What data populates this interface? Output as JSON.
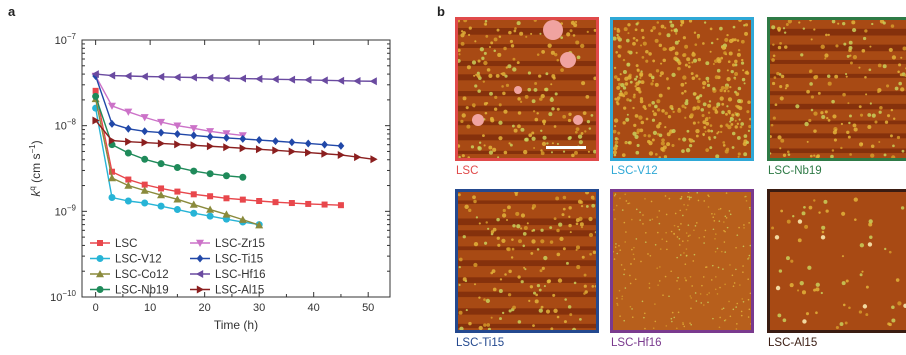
{
  "panel_a_letter": "a",
  "panel_b_letter": "b",
  "chart_data": {
    "type": "line",
    "xlabel": "Time (h)",
    "ylabel_main": "k",
    "ylabel_sup": "q",
    "ylabel_unit_pre": " (cm s",
    "ylabel_unit_sup": "−1",
    "ylabel_unit_post": ")",
    "x_ticks": [
      0,
      10,
      20,
      30,
      40,
      50
    ],
    "xlim": [
      -2.5,
      54
    ],
    "ylim": [
      1e-10,
      1e-07
    ],
    "y_scale": "log",
    "y_tick_labels": [
      {
        "value": 1e-10,
        "mant": "10",
        "exp": "−10"
      },
      {
        "value": 1e-09,
        "mant": "10",
        "exp": "−9"
      },
      {
        "value": 1e-08,
        "mant": "10",
        "exp": "−8"
      },
      {
        "value": 1e-07,
        "mant": "10",
        "exp": "−7"
      }
    ],
    "legend_position": "bottom-left",
    "series": [
      {
        "name": "LSC",
        "color": "#e8474c",
        "marker": "square",
        "x": [
          0,
          3,
          6,
          9,
          12,
          15,
          18,
          21,
          24,
          27,
          30,
          33,
          36,
          39,
          42,
          45
        ],
        "y": [
          2.55e-08,
          2.9e-09,
          2.35e-09,
          2.05e-09,
          1.85e-09,
          1.7e-09,
          1.58e-09,
          1.5e-09,
          1.42e-09,
          1.37e-09,
          1.32e-09,
          1.28e-09,
          1.25e-09,
          1.22e-09,
          1.2e-09,
          1.18e-09
        ]
      },
      {
        "name": "LSC-V12",
        "color": "#27b4d6",
        "marker": "circle",
        "x": [
          0,
          3,
          6,
          9,
          12,
          15,
          18,
          21,
          24,
          27,
          30
        ],
        "y": [
          1.6e-08,
          1.45e-09,
          1.32e-09,
          1.25e-09,
          1.15e-09,
          1.05e-09,
          9.5e-10,
          8.8e-10,
          8.1e-10,
          7.5e-10,
          7e-10
        ]
      },
      {
        "name": "LSC-Co12",
        "color": "#8a8a3c",
        "marker": "triangle-up",
        "x": [
          0,
          3,
          6,
          9,
          12,
          15,
          18,
          21,
          24,
          27,
          30
        ],
        "y": [
          2.05e-08,
          2.45e-09,
          2e-09,
          1.75e-09,
          1.55e-09,
          1.38e-09,
          1.2e-09,
          1.05e-09,
          9.2e-10,
          8e-10,
          6.9e-10
        ]
      },
      {
        "name": "LSC-Nb19",
        "color": "#1f8a5a",
        "marker": "circle",
        "x": [
          0,
          3,
          6,
          9,
          12,
          15,
          18,
          21,
          24,
          27
        ],
        "y": [
          2.2e-08,
          6e-09,
          4.8e-09,
          4.05e-09,
          3.6e-09,
          3.25e-09,
          2.95e-09,
          2.75e-09,
          2.6e-09,
          2.5e-09
        ]
      },
      {
        "name": "LSC-Zr15",
        "color": "#cc72c8",
        "marker": "triangle-down",
        "x": [
          0,
          3,
          6,
          9,
          12,
          15,
          18,
          21,
          24,
          27
        ],
        "y": [
          3.8e-08,
          1.7e-08,
          1.45e-08,
          1.25e-08,
          1.1e-08,
          1e-08,
          9.3e-09,
          8.6e-09,
          8.1e-09,
          7.7e-09
        ]
      },
      {
        "name": "LSC-Ti15",
        "color": "#2148a8",
        "marker": "diamond",
        "x": [
          0,
          3,
          6,
          9,
          12,
          15,
          18,
          21,
          24,
          27,
          30,
          33,
          36,
          39,
          42,
          45
        ],
        "y": [
          3.8e-08,
          1.05e-08,
          9.2e-09,
          8.6e-09,
          8.3e-09,
          8e-09,
          7.7e-09,
          7.4e-09,
          7.2e-09,
          7e-09,
          6.8e-09,
          6.6e-09,
          6.4e-09,
          6.2e-09,
          6e-09,
          5.8e-09
        ]
      },
      {
        "name": "LSC-Hf16",
        "color": "#6a4aa0",
        "marker": "triangle-left",
        "x": [
          0,
          3,
          6,
          9,
          12,
          15,
          18,
          21,
          24,
          27,
          30,
          33,
          36,
          39,
          42,
          45,
          48,
          51
        ],
        "y": [
          4e-08,
          3.85e-08,
          3.8e-08,
          3.75e-08,
          3.72e-08,
          3.68e-08,
          3.65e-08,
          3.62e-08,
          3.58e-08,
          3.55e-08,
          3.52e-08,
          3.48e-08,
          3.45e-08,
          3.42e-08,
          3.38e-08,
          3.35e-08,
          3.32e-08,
          3.3e-08
        ]
      },
      {
        "name": "LSC-Al15",
        "color": "#8b1f1f",
        "marker": "triangle-right",
        "x": [
          0,
          3,
          6,
          9,
          12,
          15,
          18,
          21,
          24,
          27,
          30,
          33,
          36,
          39,
          42,
          45,
          48,
          51
        ],
        "y": [
          1.15e-08,
          6.7e-09,
          6.5e-09,
          6.35e-09,
          6.2e-09,
          6.05e-09,
          5.9e-09,
          5.75e-09,
          5.6e-09,
          5.45e-09,
          5.3e-09,
          5.15e-09,
          5e-09,
          4.85e-09,
          4.7e-09,
          4.55e-09,
          4.3e-09,
          4.05e-09
        ]
      }
    ]
  },
  "afm_tiles": [
    {
      "label": "LSC",
      "color": "#e04a4a",
      "style": "patchy",
      "scale_bar": true
    },
    {
      "label": "LSC-V12",
      "color": "#2fa8d6",
      "style": "grainy",
      "scale_bar": false
    },
    {
      "label": "LSC-Nb19",
      "color": "#2e7a46",
      "style": "streaky",
      "scale_bar": false
    },
    {
      "label": "LSC-Ti15",
      "color": "#24498f",
      "style": "streaky",
      "scale_bar": false
    },
    {
      "label": "LSC-Hf16",
      "color": "#7a3a8e",
      "style": "smooth",
      "scale_bar": false
    },
    {
      "label": "LSC-Al15",
      "color": "#3a1c12",
      "style": "sparse",
      "scale_bar": false
    }
  ]
}
